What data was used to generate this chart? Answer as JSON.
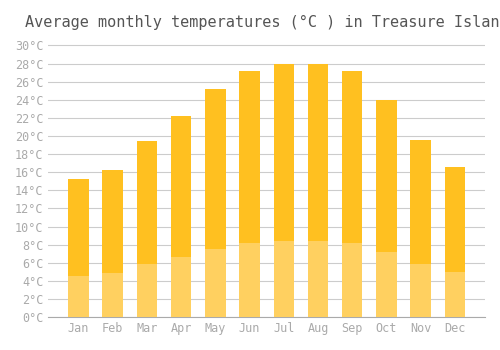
{
  "title": "Average monthly temperatures (°C ) in Treasure Island",
  "months": [
    "Jan",
    "Feb",
    "Mar",
    "Apr",
    "May",
    "Jun",
    "Jul",
    "Aug",
    "Sep",
    "Oct",
    "Nov",
    "Dec"
  ],
  "values": [
    15.3,
    16.2,
    19.4,
    22.2,
    25.2,
    27.2,
    28.0,
    28.0,
    27.2,
    24.0,
    19.6,
    16.6
  ],
  "bar_color_top": "#FFC020",
  "bar_color_bottom": "#FFD060",
  "background_color": "#FFFFFF",
  "grid_color": "#CCCCCC",
  "title_color": "#555555",
  "tick_color": "#AAAAAA",
  "ylim": [
    0,
    30
  ],
  "ytick_step": 2,
  "title_fontsize": 11,
  "tick_fontsize": 8.5,
  "font_family": "monospace"
}
